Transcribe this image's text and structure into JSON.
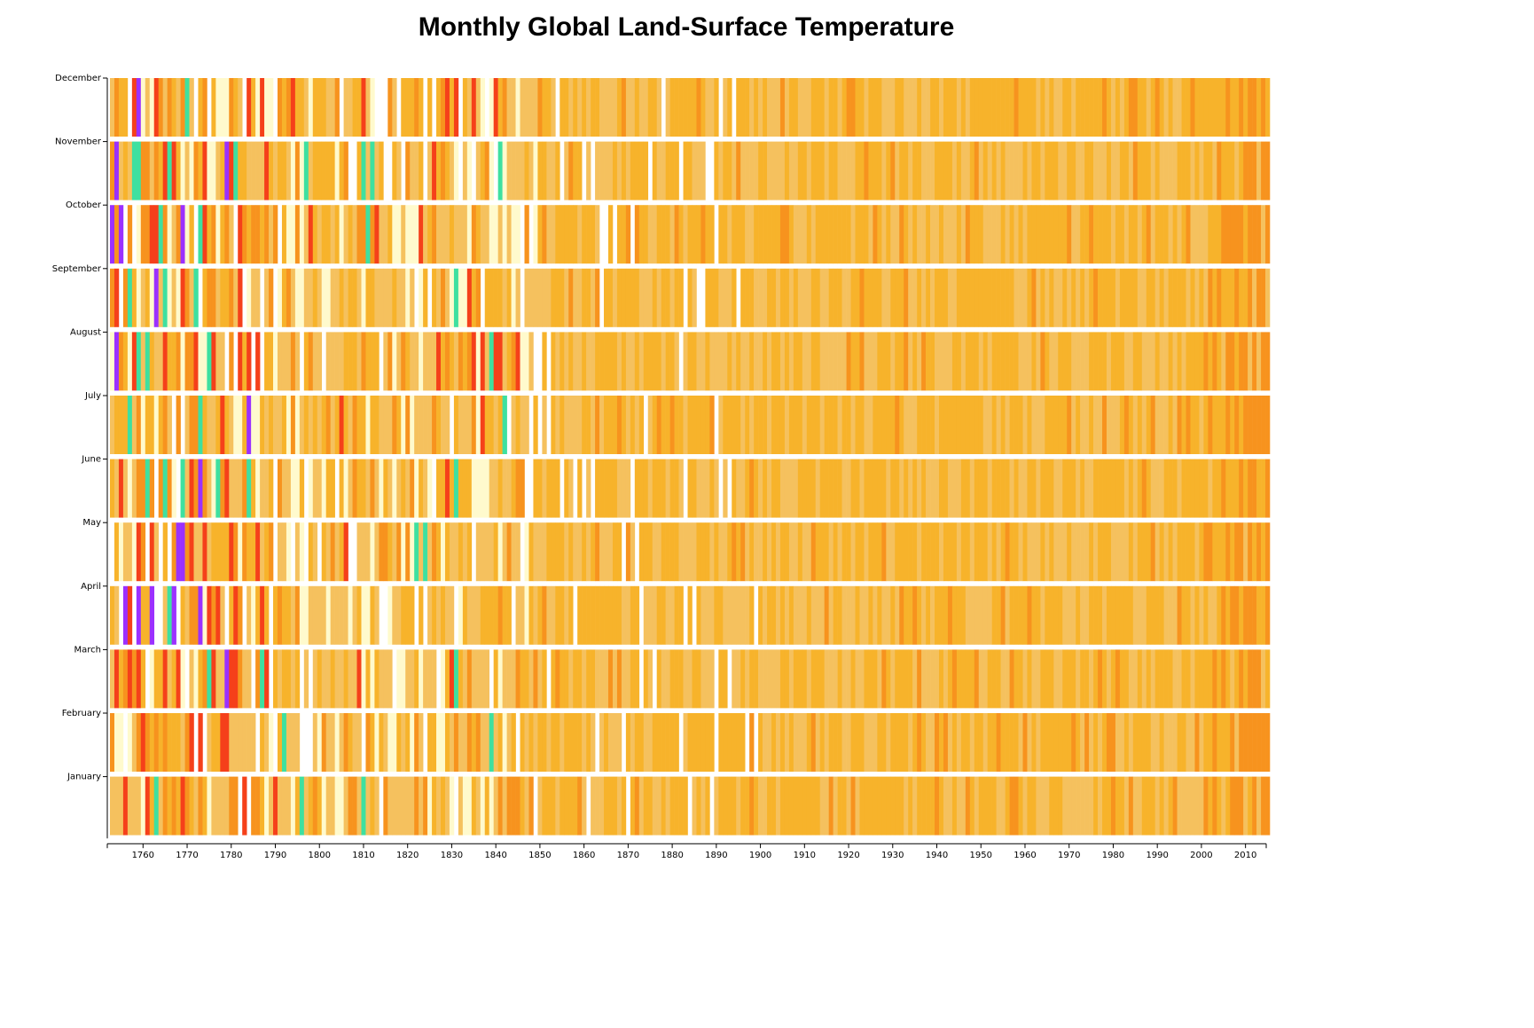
{
  "chart_data": {
    "type": "heatmap",
    "title": "Monthly Global Land-Surface Temperature",
    "xlabel": "",
    "ylabel": "",
    "year_range": [
      1753,
      2015
    ],
    "x_ticks": [
      1760,
      1770,
      1780,
      1790,
      1800,
      1810,
      1820,
      1830,
      1840,
      1850,
      1860,
      1870,
      1880,
      1890,
      1900,
      1910,
      1920,
      1930,
      1940,
      1950,
      1960,
      1970,
      1980,
      1990,
      2000,
      2010
    ],
    "months": [
      "January",
      "February",
      "March",
      "April",
      "May",
      "June",
      "July",
      "August",
      "September",
      "October",
      "November",
      "December"
    ],
    "color_scale": [
      "#9b30ff",
      "#3ee0a0",
      "#fffacd",
      "#f5c15e",
      "#f7b32b",
      "#f7931e",
      "#f5401a"
    ],
    "grid": false,
    "legend": "none"
  }
}
